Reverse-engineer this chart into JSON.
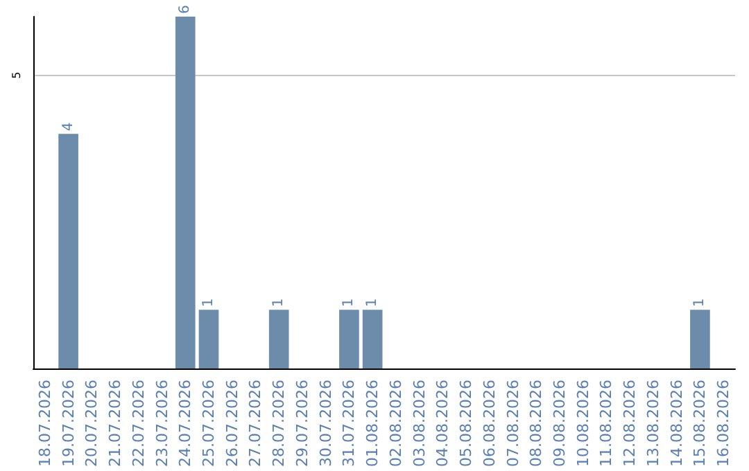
{
  "chart_data": {
    "type": "bar",
    "categories": [
      "18.07.2026",
      "19.07.2026",
      "20.07.2026",
      "21.07.2026",
      "22.07.2026",
      "23.07.2026",
      "24.07.2026",
      "25.07.2026",
      "26.07.2026",
      "27.07.2026",
      "28.07.2026",
      "29.07.2026",
      "30.07.2026",
      "31.07.2026",
      "01.08.2026",
      "02.08.2026",
      "03.08.2026",
      "04.08.2026",
      "05.08.2026",
      "06.08.2026",
      "07.08.2026",
      "08.08.2026",
      "09.08.2026",
      "10.08.2026",
      "11.08.2026",
      "12.08.2026",
      "13.08.2026",
      "14.08.2026",
      "15.08.2026",
      "16.08.2026"
    ],
    "values": [
      0,
      4,
      0,
      0,
      0,
      0,
      6,
      1,
      0,
      0,
      1,
      0,
      0,
      1,
      1,
      0,
      0,
      0,
      0,
      0,
      0,
      0,
      0,
      0,
      0,
      0,
      0,
      0,
      1,
      0
    ],
    "value_labels": [
      null,
      "4",
      null,
      null,
      null,
      null,
      "6",
      "1",
      null,
      null,
      "1",
      null,
      null,
      "1",
      "1",
      null,
      null,
      null,
      null,
      null,
      null,
      null,
      null,
      null,
      null,
      null,
      null,
      null,
      "1",
      null
    ],
    "color": "#6d8cab",
    "ylim": [
      0,
      6
    ],
    "yticks": [
      5
    ],
    "grid": "y"
  }
}
